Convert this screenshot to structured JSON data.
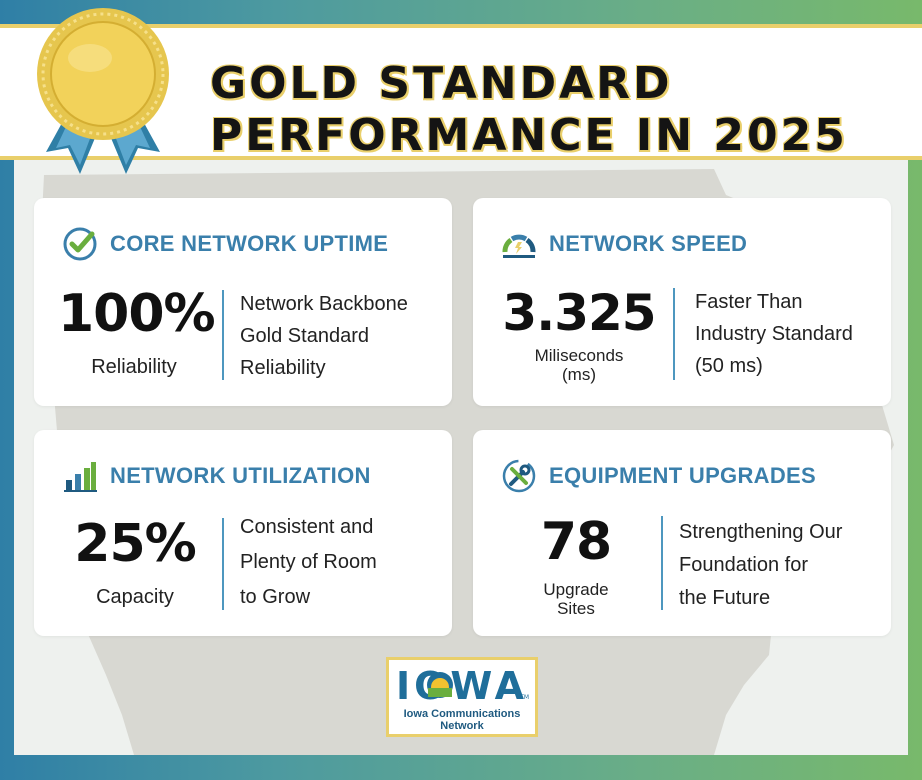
{
  "header": {
    "title_line1": "GOLD STANDARD",
    "title_line2": "PERFORMANCE IN 2025"
  },
  "colors": {
    "accent_blue": "#3a7fab",
    "gold": "#e9cf6b",
    "frame_left": "#2f7fa6",
    "frame_right": "#78b96b"
  },
  "cards": [
    {
      "title": "CORE NETWORK UPTIME",
      "icon": "check-circle-icon",
      "value": "100%",
      "unit": "Reliability",
      "desc": [
        "Network Backbone",
        "Gold Standard",
        "Reliability"
      ]
    },
    {
      "title": "NETWORK SPEED",
      "icon": "speedometer-icon",
      "value": "3.325",
      "unit_line1": "Miliseconds",
      "unit_line2": "(ms)",
      "desc": [
        "Faster Than",
        "Industry Standard",
        "(50 ms)"
      ]
    },
    {
      "title": "NETWORK UTILIZATION",
      "icon": "bar-chart-icon",
      "value": "25%",
      "unit": "Capacity",
      "desc": [
        "Consistent and",
        "Plenty of Room",
        "to Grow"
      ]
    },
    {
      "title": "EQUIPMENT UPGRADES",
      "icon": "wrench-screwdriver-icon",
      "value": "78",
      "unit_line1": "Upgrade",
      "unit_line2": "Sites",
      "desc": [
        "Strengthening Our",
        "Foundation for",
        "the Future"
      ]
    }
  ],
  "logo": {
    "word": "IOWA",
    "tm": "TM",
    "line1": "Iowa Communications",
    "line2": "Network"
  }
}
